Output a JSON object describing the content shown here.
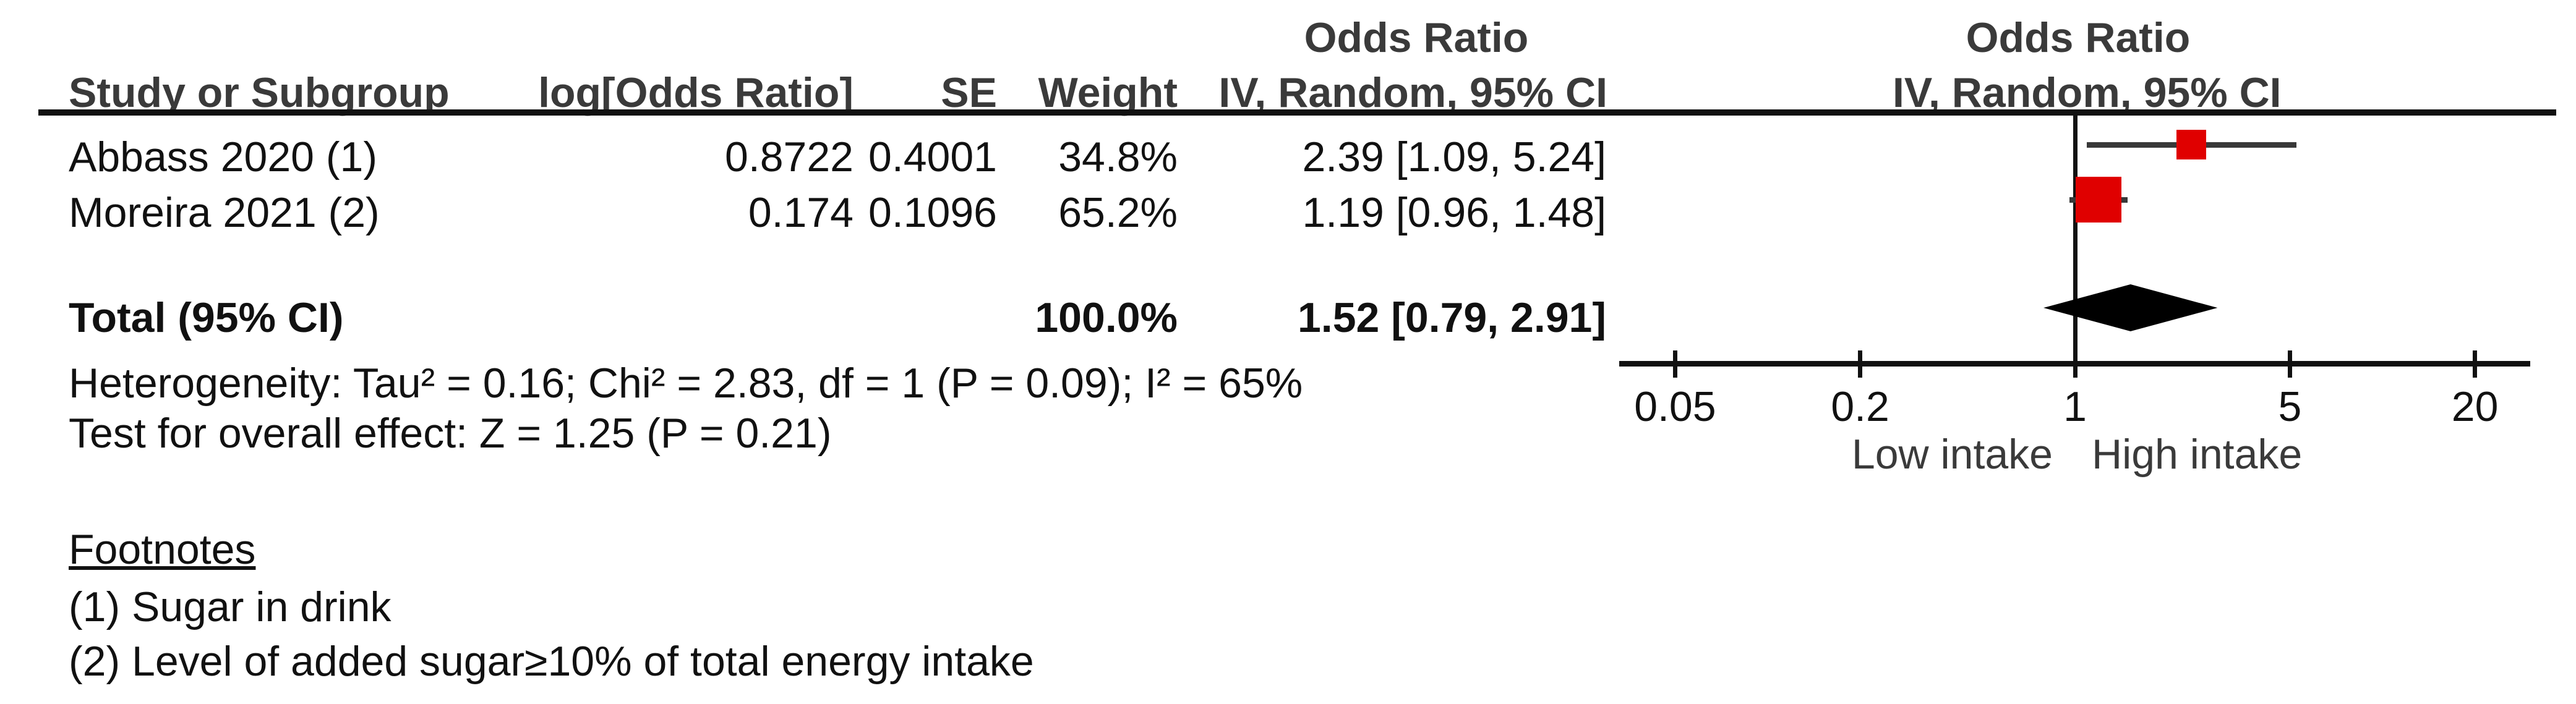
{
  "chart_data": {
    "type": "forest",
    "effect_measure": "Odds Ratio",
    "method_label": "IV, Random, 95% CI",
    "columns": {
      "study": "Study or Subgroup",
      "log_or": "log[Odds Ratio]",
      "se": "SE",
      "weight": "Weight",
      "ci": "IV, Random, 95% CI"
    },
    "studies": [
      {
        "name": "Abbass 2020 (1)",
        "log_or": "0.8722",
        "se": "0.4001",
        "weight": "34.8%",
        "ci_text": "2.39 [1.09, 5.24]",
        "or": 2.39,
        "ci_low": 1.09,
        "ci_high": 5.24,
        "weight_pct": 34.8
      },
      {
        "name": "Moreira 2021 (2)",
        "log_or": "0.174",
        "se": "0.1096",
        "weight": "65.2%",
        "ci_text": "1.19 [0.96, 1.48]",
        "or": 1.19,
        "ci_low": 0.96,
        "ci_high": 1.48,
        "weight_pct": 65.2
      }
    ],
    "total": {
      "label": "Total (95% CI)",
      "weight": "100.0%",
      "ci_text": "1.52 [0.79, 2.91]",
      "or": 1.52,
      "ci_low": 0.79,
      "ci_high": 2.91
    },
    "heterogeneity": "Heterogeneity: Tau² = 0.16; Chi² = 2.83, df = 1 (P = 0.09); I² = 65%",
    "overall_effect": "Test for overall effect: Z = 1.25 (P = 0.21)",
    "axis": {
      "scale": "log",
      "ticks": [
        0.05,
        0.2,
        1,
        5,
        20
      ],
      "tick_labels": [
        "0.05",
        "0.2",
        "1",
        "5",
        "20"
      ],
      "left_label": "Low intake",
      "right_label": "High intake"
    },
    "footnotes": {
      "title": "Footnotes",
      "items": [
        "(1) Sugar in drink",
        "(2) Level of added sugar≥10% of total energy intake"
      ]
    },
    "colors": {
      "square": "#e00000",
      "diamond": "#000000",
      "ci_line": "#383838",
      "axis_line": "#111111",
      "header_text": "#3a3a3a",
      "body_text": "#111111"
    }
  }
}
